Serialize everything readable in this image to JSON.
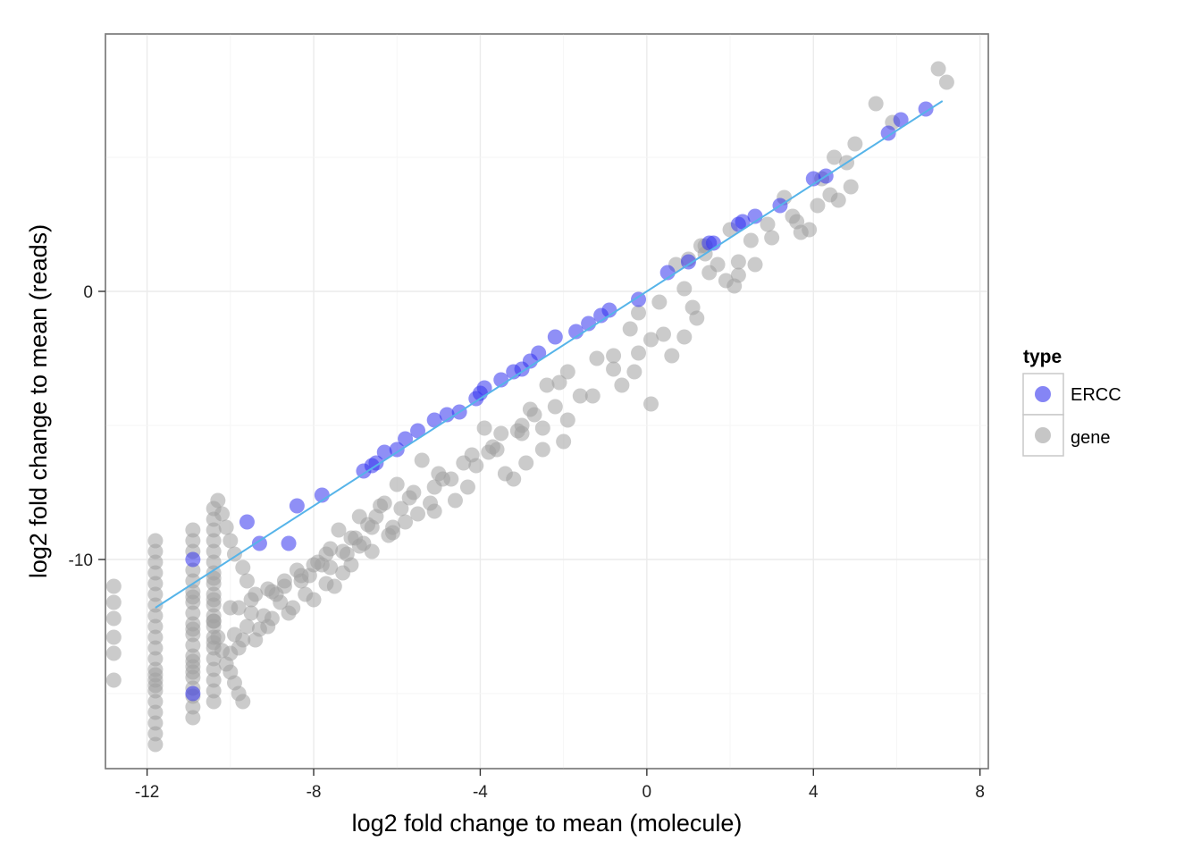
{
  "chart_data": {
    "type": "scatter",
    "xlabel": "log2 fold change to mean (molecule)",
    "ylabel": "log2 fold change to mean (reads)",
    "xlim": [
      -13,
      8.2
    ],
    "ylim": [
      -17.8,
      9.6
    ],
    "xticks": [
      -12,
      -8,
      -4,
      0,
      4,
      8
    ],
    "xtick_labels": [
      "-12",
      "-8",
      "-4",
      "0",
      "4",
      "8"
    ],
    "yticks": [
      -10,
      0
    ],
    "ytick_labels": [
      "-10",
      "0"
    ],
    "grid": true,
    "legend": {
      "title": "type",
      "position": "right",
      "entries": [
        {
          "label": "ERCC",
          "color": "#3333ee"
        },
        {
          "label": "gene",
          "color": "#a0a0a0"
        }
      ]
    },
    "fit_line": {
      "color": "#56B4E9",
      "x": [
        -11.8,
        7.1
      ],
      "y": [
        -11.8,
        7.1
      ]
    },
    "series": [
      {
        "name": "ERCC",
        "color": "#3333ee",
        "x": [
          6.7,
          6.1,
          5.8,
          4.3,
          4.0,
          3.2,
          2.6,
          2.3,
          2.2,
          1.6,
          1.5,
          1.0,
          0.5,
          -0.2,
          -0.9,
          -1.1,
          -1.4,
          -1.7,
          -2.2,
          -2.6,
          -2.8,
          -3.0,
          -3.2,
          -3.5,
          -3.9,
          -4.0,
          -4.1,
          -4.5,
          -4.8,
          -5.1,
          -5.5,
          -5.8,
          -6.0,
          -6.3,
          -6.5,
          -6.6,
          -6.8,
          -7.8,
          -8.4,
          -9.3,
          -9.6,
          -8.6,
          -10.9,
          -10.9
        ],
        "y": [
          6.8,
          6.4,
          5.9,
          4.3,
          4.2,
          3.2,
          2.8,
          2.6,
          2.5,
          1.8,
          1.8,
          1.1,
          0.7,
          -0.3,
          -0.7,
          -0.9,
          -1.2,
          -1.5,
          -1.7,
          -2.3,
          -2.6,
          -2.9,
          -3.0,
          -3.3,
          -3.6,
          -3.8,
          -4.0,
          -4.5,
          -4.6,
          -4.8,
          -5.2,
          -5.5,
          -5.9,
          -6.0,
          -6.4,
          -6.5,
          -6.7,
          -7.6,
          -8.0,
          -9.4,
          -8.6,
          -9.4,
          -10.0,
          -15.0
        ]
      },
      {
        "name": "gene",
        "color": "#a0a0a0",
        "x": [
          7.0,
          7.2,
          5.5,
          5.9,
          5.0,
          4.5,
          4.8,
          4.2,
          3.3,
          3.5,
          2.9,
          2.0,
          2.5,
          3.6,
          3.9,
          3.0,
          4.4,
          1.4,
          0.7,
          2.2,
          2.1,
          1.3,
          1.0,
          0.9,
          0.3,
          -0.2,
          -0.4,
          0.1,
          0.9,
          1.5,
          1.7,
          1.4,
          1.2,
          0.6,
          -0.8,
          -1.2,
          -1.9,
          -2.4,
          -0.3,
          -0.6,
          -0.8,
          0.1,
          -1.3,
          -1.9,
          -2.5,
          -3.0,
          -3.5,
          -2.0,
          -2.5,
          -2.9,
          -3.4,
          -3.2,
          -4.3,
          -4.6,
          -5.1,
          -5.8,
          -6.2,
          -6.8,
          -7.2,
          -7.8,
          -8.3,
          -8.7,
          -9.0,
          -9.5,
          -5.4,
          -6.0,
          -6.4,
          -6.9,
          -7.4,
          -7.6,
          -7.9,
          -8.3,
          -8.8,
          -9.2,
          -9.6,
          -9.9,
          -3.9,
          -4.2,
          -5.0,
          -5.6,
          -6.3,
          -6.7,
          -7.0,
          -7.3,
          -7.5,
          -8.0,
          -8.6,
          -9.1,
          -9.4,
          -9.8,
          -6.1,
          -6.6,
          -7.1,
          -7.7,
          -8.2,
          -8.5,
          -9.0,
          -9.3,
          -9.7,
          -10.0,
          -2.7,
          -3.1,
          -3.6,
          -4.1,
          -4.7,
          -5.2,
          -5.5,
          -6.1,
          -6.9,
          -7.6,
          -8.1,
          -8.9,
          -9.5,
          -10.3,
          -10.2,
          -10.1,
          -10.0,
          -9.9,
          -9.7,
          -9.6,
          -10.4,
          -10.3,
          -10.2,
          -10.1,
          -10.0,
          -9.9,
          -9.8,
          -9.7,
          -12.8,
          -12.8,
          -12.8,
          -12.8,
          -12.8,
          -12.8,
          -11.8,
          -11.8,
          -11.8,
          -11.8,
          -11.8,
          -11.8,
          -11.8,
          -11.8,
          -11.8,
          -11.8,
          -11.8,
          -11.8,
          -11.8,
          -11.8,
          -11.8,
          -11.8,
          -11.8,
          -11.8,
          -11.8,
          -11.8,
          -11.8,
          -11.8,
          -10.9,
          -10.9,
          -10.9,
          -10.9,
          -10.9,
          -10.9,
          -10.9,
          -10.9,
          -10.9,
          -10.9,
          -10.9,
          -10.9,
          -10.9,
          -10.9,
          -10.9,
          -10.9,
          -10.9,
          -10.9,
          -10.9,
          -10.9,
          -10.9,
          -10.9,
          -10.4,
          -10.4,
          -10.4,
          -10.4,
          -10.4,
          -10.4,
          -10.4,
          -10.4,
          -10.4,
          -10.4,
          -10.4,
          -10.4,
          -10.4,
          -10.4,
          -10.4,
          -10.4,
          -10.4,
          -10.4,
          -10.4,
          -10.4,
          -10.4,
          -10.4,
          -10.4,
          4.6,
          4.1,
          4.9,
          3.7,
          2.6,
          2.2,
          1.9,
          1.1,
          0.4,
          -0.2,
          -1.6,
          -2.2,
          -3.0,
          -3.8,
          -4.4,
          -5.1,
          -5.9,
          -6.6,
          -7.3,
          -8.0,
          -8.7,
          -9.4,
          -10.0,
          -2.1,
          -2.8,
          -3.7,
          -4.9,
          -5.7,
          -6.5,
          -7.1,
          -7.7,
          -8.4,
          -9.1,
          -9.8
        ],
        "y": [
          8.3,
          7.8,
          7.0,
          6.3,
          5.5,
          5.0,
          4.8,
          4.2,
          3.5,
          2.8,
          2.5,
          2.3,
          1.9,
          2.6,
          2.3,
          2.0,
          3.6,
          1.4,
          1.0,
          1.1,
          0.2,
          1.7,
          1.2,
          0.1,
          -0.4,
          -0.8,
          -1.4,
          -1.8,
          -1.7,
          0.7,
          1.0,
          1.7,
          -1.0,
          -2.4,
          -2.4,
          -2.5,
          -3.0,
          -3.5,
          -3.0,
          -3.5,
          -2.9,
          -4.2,
          -3.9,
          -4.8,
          -5.1,
          -5.0,
          -5.3,
          -5.6,
          -5.9,
          -6.4,
          -6.8,
          -7.0,
          -7.3,
          -7.8,
          -8.2,
          -8.6,
          -9.1,
          -9.4,
          -9.8,
          -10.2,
          -10.6,
          -11.0,
          -11.2,
          -11.5,
          -6.3,
          -7.2,
          -8.0,
          -8.4,
          -8.9,
          -9.6,
          -10.1,
          -10.8,
          -11.6,
          -12.1,
          -12.5,
          -12.8,
          -5.1,
          -6.1,
          -6.8,
          -7.5,
          -7.9,
          -8.7,
          -9.2,
          -10.5,
          -11.0,
          -11.5,
          -12.0,
          -12.5,
          -13.0,
          -13.3,
          -8.8,
          -9.7,
          -10.2,
          -10.9,
          -11.3,
          -11.8,
          -12.2,
          -12.6,
          -13.0,
          -13.5,
          -4.6,
          -5.2,
          -5.9,
          -6.5,
          -7.0,
          -7.9,
          -8.3,
          -9.0,
          -9.5,
          -10.3,
          -10.6,
          -11.3,
          -12.0,
          -7.8,
          -8.3,
          -8.8,
          -9.3,
          -9.8,
          -10.3,
          -10.8,
          -12.3,
          -12.9,
          -13.4,
          -13.9,
          -14.2,
          -14.6,
          -15.0,
          -15.3,
          -11.0,
          -11.6,
          -12.2,
          -12.9,
          -13.5,
          -14.5,
          -9.3,
          -9.7,
          -10.1,
          -10.5,
          -10.9,
          -11.3,
          -11.7,
          -12.1,
          -12.5,
          -12.9,
          -13.3,
          -13.7,
          -14.1,
          -14.5,
          -14.9,
          -15.3,
          -15.7,
          -16.1,
          -16.5,
          -16.9,
          -14.3,
          -14.7,
          -8.9,
          -9.3,
          -9.7,
          -10.4,
          -10.8,
          -11.2,
          -11.6,
          -12.0,
          -12.4,
          -12.8,
          -13.2,
          -13.6,
          -14.0,
          -14.4,
          -14.8,
          -15.1,
          -15.5,
          -15.9,
          -14.2,
          -13.8,
          -12.6,
          -11.4,
          -8.5,
          -8.9,
          -9.3,
          -9.7,
          -10.1,
          -10.5,
          -10.9,
          -11.3,
          -11.7,
          -12.1,
          -12.5,
          -12.9,
          -13.3,
          -13.7,
          -14.1,
          -14.5,
          -14.9,
          -15.3,
          -13.1,
          -12.3,
          -11.5,
          -10.7,
          -8.1,
          3.4,
          3.2,
          3.9,
          2.2,
          1.0,
          0.6,
          0.4,
          -0.6,
          -1.6,
          -2.3,
          -3.9,
          -4.3,
          -5.3,
          -6.0,
          -6.4,
          -7.3,
          -8.1,
          -8.8,
          -9.7,
          -10.2,
          -10.8,
          -11.3,
          -11.8,
          -3.4,
          -4.4,
          -5.8,
          -7.0,
          -7.7,
          -8.4,
          -9.2,
          -9.8,
          -10.4,
          -11.1,
          -11.8
        ]
      }
    ]
  }
}
